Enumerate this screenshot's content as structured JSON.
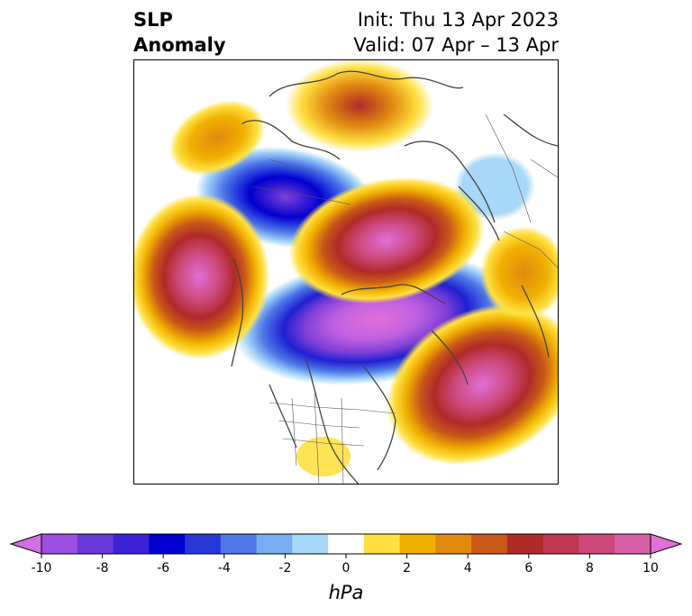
{
  "title": {
    "left_line1": "SLP",
    "left_line2": "Anomaly",
    "right_line1": "Init: Thu 13 Apr 2023",
    "right_line2": "Valid: 07 Apr – 13 Apr"
  },
  "colorbar": {
    "unit": "hPa",
    "min": -10,
    "max": 10,
    "ticks": [
      "-10",
      "-8",
      "-6",
      "-4",
      "-2",
      "0",
      "2",
      "4",
      "6",
      "8",
      "10"
    ],
    "extend": "both",
    "colors": [
      "#d070e0",
      "#9a50e0",
      "#6a38d8",
      "#3d22d8",
      "#0000d0",
      "#2838d8",
      "#4e78e8",
      "#78aef0",
      "#a8d8f8",
      "#ffffff",
      "#ffe040",
      "#f0b000",
      "#e08a10",
      "#c85818",
      "#b02a28",
      "#c03850",
      "#cc4878",
      "#d860a8",
      "#e070d8"
    ]
  }
}
